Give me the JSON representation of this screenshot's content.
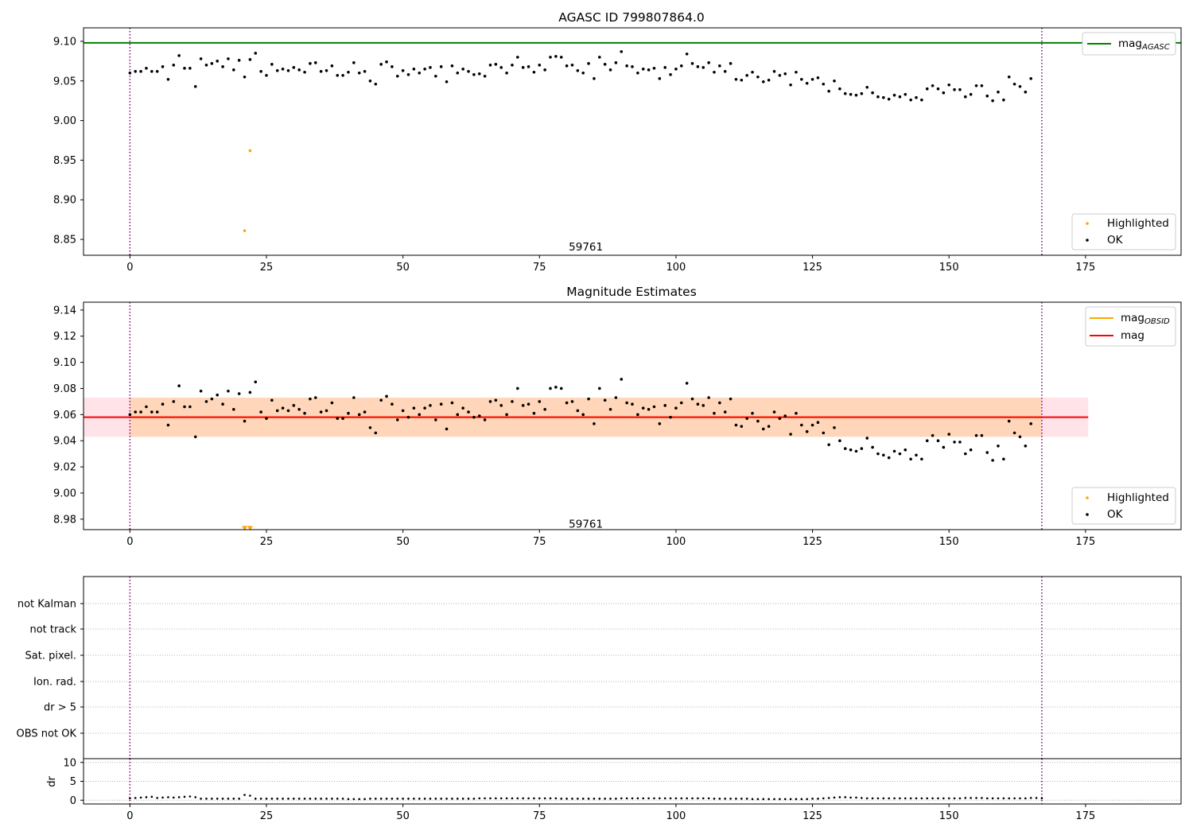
{
  "chart_data": [
    {
      "type": "scatter",
      "title": "AGASC ID 799807864.0",
      "xlim": [
        -8.5,
        192.5
      ],
      "ylim": [
        8.83,
        9.117
      ],
      "x_ticks": [
        0,
        25,
        50,
        75,
        100,
        125,
        150,
        175
      ],
      "y_ticks": [
        8.85,
        8.9,
        8.95,
        9.0,
        9.05,
        9.1
      ],
      "y_tick_labels": [
        "8.85",
        "8.90",
        "8.95",
        "9.00",
        "9.05",
        "9.10"
      ],
      "hline": {
        "y": 9.098,
        "color": "#008000"
      },
      "vlines": {
        "x": [
          0,
          167
        ],
        "color": "#800080"
      },
      "annotation": {
        "text": "59761",
        "x": 83.5,
        "y": 8.84
      },
      "legend_top": {
        "label": "mag",
        "sub": "AGASC",
        "color": "#008000"
      },
      "legend_bottom": [
        {
          "label": "Highlighted",
          "color": "#ffa500"
        },
        {
          "label": "OK",
          "color": "#000000"
        }
      ],
      "highlighted": [
        [
          21,
          8.861
        ],
        [
          22,
          8.962
        ]
      ],
      "colors": {
        "ok": "#000000",
        "highlighted": "#ffa500"
      }
    },
    {
      "type": "scatter",
      "title": "Magnitude Estimates",
      "xlim": [
        -8.5,
        192.5
      ],
      "ylim": [
        8.972,
        9.146
      ],
      "x_ticks": [
        0,
        25,
        50,
        75,
        100,
        125,
        150,
        175
      ],
      "y_ticks": [
        8.98,
        9.0,
        9.02,
        9.04,
        9.06,
        9.08,
        9.1,
        9.12,
        9.14
      ],
      "y_tick_labels": [
        "8.98",
        "9.00",
        "9.02",
        "9.04",
        "9.06",
        "9.08",
        "9.10",
        "9.12",
        "9.14"
      ],
      "mag_line": {
        "y": 9.058,
        "x_range": [
          -8.5,
          175.5
        ],
        "color": "#ff0000"
      },
      "obsid_line": {
        "y": 9.058,
        "x_range": [
          0,
          167
        ],
        "color": "#ffa500"
      },
      "band": {
        "y_range": [
          9.043,
          9.073
        ],
        "x_range": [
          -8.5,
          175.5
        ],
        "color": "#ffc0cb"
      },
      "obsid_band": {
        "y_range": [
          9.043,
          9.073
        ],
        "x_range": [
          0,
          167
        ],
        "color": "#ffa500"
      },
      "vlines": {
        "x": [
          0,
          167
        ],
        "color": "#800080"
      },
      "annotation": {
        "text": "59761",
        "x": 83.5,
        "y": 8.976
      },
      "legend_top": [
        {
          "label": "mag",
          "sub": "OBSID",
          "color": "#ffa500"
        },
        {
          "label": "mag",
          "sub": "",
          "color": "#ff0000"
        }
      ],
      "legend_bottom": [
        {
          "label": "Highlighted",
          "color": "#ffa500"
        },
        {
          "label": "OK",
          "color": "#000000"
        }
      ],
      "highlighted_markers": [
        [
          21,
          8.973
        ],
        [
          22,
          8.973
        ]
      ],
      "colors": {
        "ok": "#000000",
        "highlighted": "#ffa500"
      }
    },
    {
      "type": "scatter",
      "xlim": [
        -8.5,
        192.5
      ],
      "categories": [
        "not Kalman",
        "not track",
        "Sat. pixel.",
        "Ion. rad.",
        "dr > 5",
        "OBS not OK"
      ],
      "vlines": {
        "x": [
          0,
          167
        ],
        "color": "#800080"
      }
    },
    {
      "type": "scatter",
      "ylabel": "dr",
      "xlim": [
        -8.5,
        192.5
      ],
      "ylim": [
        -1,
        11
      ],
      "x_ticks": [
        0,
        25,
        50,
        75,
        100,
        125,
        150,
        175
      ],
      "x_tick_labels": [
        "0",
        "25",
        "50",
        "75",
        "100",
        "125",
        "150",
        "175"
      ],
      "y_ticks": [
        0,
        5,
        10
      ],
      "y_tick_labels": [
        "0",
        "5",
        "10"
      ],
      "vlines": {
        "x": [
          0,
          167
        ],
        "color": "#800080"
      },
      "colors": {
        "ok": "#000000",
        "highlighted": "#ffa500"
      }
    }
  ],
  "series": {
    "mag_ok": [
      9.06,
      9.062,
      9.062,
      9.066,
      9.062,
      9.062,
      9.068,
      9.052,
      9.07,
      9.082,
      9.066,
      9.066,
      9.043,
      9.078,
      9.07,
      9.072,
      9.075,
      9.068,
      9.078,
      9.064,
      9.076,
      9.055,
      9.077,
      9.085,
      9.062,
      9.057,
      9.071,
      9.063,
      9.065,
      9.063,
      9.067,
      9.064,
      9.061,
      9.072,
      9.073,
      9.062,
      9.063,
      9.069,
      9.057,
      9.057,
      9.061,
      9.073,
      9.06,
      9.062,
      9.05,
      9.046,
      9.071,
      9.074,
      9.068,
      9.056,
      9.063,
      9.058,
      9.065,
      9.06,
      9.065,
      9.067,
      9.056,
      9.068,
      9.049,
      9.069,
      9.06,
      9.065,
      9.062,
      9.058,
      9.059,
      9.056,
      9.07,
      9.071,
      9.067,
      9.06,
      9.07,
      9.08,
      9.067,
      9.068,
      9.061,
      9.07,
      9.064,
      9.08,
      9.081,
      9.08,
      9.069,
      9.07,
      9.063,
      9.06,
      9.072,
      9.053,
      9.08,
      9.071,
      9.064,
      9.073,
      9.087,
      9.069,
      9.068,
      9.06,
      9.065,
      9.064,
      9.066,
      9.053,
      9.067,
      9.058,
      9.065,
      9.069,
      9.084,
      9.072,
      9.068,
      9.067,
      9.073,
      9.061,
      9.069,
      9.062,
      9.072,
      9.052,
      9.051,
      9.057,
      9.061,
      9.055,
      9.049,
      9.051,
      9.062,
      9.057,
      9.059,
      9.045,
      9.061,
      9.052,
      9.047,
      9.052,
      9.054,
      9.046,
      9.037,
      9.05,
      9.04,
      9.034,
      9.033,
      9.032,
      9.034,
      9.042,
      9.035,
      9.03,
      9.029,
      9.027,
      9.032,
      9.03,
      9.033,
      9.026,
      9.029,
      9.026,
      9.04,
      9.044,
      9.04,
      9.035,
      9.045,
      9.039,
      9.039,
      9.03,
      9.033,
      9.044,
      9.044,
      9.031,
      9.025,
      9.036,
      9.026,
      9.055,
      9.046,
      9.043,
      9.036,
      9.053
    ],
    "dr_ok": [
      0.5,
      0.6,
      0.7,
      0.8,
      0.9,
      0.6,
      0.7,
      0.8,
      0.7,
      0.8,
      0.9,
      1.0,
      0.8,
      0.4,
      0.4,
      0.4,
      0.4,
      0.4,
      0.4,
      0.4,
      0.4,
      1.4,
      1.2,
      0.4,
      0.4,
      0.4,
      0.4,
      0.4,
      0.4,
      0.4,
      0.4,
      0.4,
      0.4,
      0.4,
      0.4,
      0.4,
      0.4,
      0.4,
      0.4,
      0.4,
      0.3,
      0.3,
      0.3,
      0.3,
      0.4,
      0.4,
      0.4,
      0.4,
      0.4,
      0.4,
      0.4,
      0.4,
      0.4,
      0.4,
      0.4,
      0.4,
      0.4,
      0.4,
      0.4,
      0.4,
      0.4,
      0.4,
      0.4,
      0.4,
      0.5,
      0.5,
      0.5,
      0.5,
      0.5,
      0.5,
      0.5,
      0.5,
      0.5,
      0.5,
      0.5,
      0.5,
      0.5,
      0.5,
      0.5,
      0.4,
      0.4,
      0.4,
      0.4,
      0.4,
      0.4,
      0.4,
      0.4,
      0.4,
      0.4,
      0.4,
      0.5,
      0.5,
      0.5,
      0.5,
      0.5,
      0.5,
      0.5,
      0.5,
      0.5,
      0.5,
      0.5,
      0.5,
      0.5,
      0.5,
      0.5,
      0.5,
      0.5,
      0.4,
      0.4,
      0.4,
      0.4,
      0.4,
      0.4,
      0.4,
      0.3,
      0.3,
      0.3,
      0.3,
      0.3,
      0.3,
      0.3,
      0.3,
      0.3,
      0.3,
      0.3,
      0.4,
      0.4,
      0.5,
      0.6,
      0.7,
      0.8,
      0.8,
      0.7,
      0.7,
      0.6,
      0.5,
      0.5,
      0.5,
      0.5,
      0.5,
      0.5,
      0.5,
      0.5,
      0.5,
      0.5,
      0.5,
      0.5,
      0.5,
      0.5,
      0.5,
      0.5,
      0.5,
      0.5,
      0.6,
      0.6,
      0.6,
      0.6,
      0.5,
      0.5,
      0.5,
      0.5,
      0.5,
      0.5,
      0.5,
      0.5,
      0.6,
      0.6,
      0.5
    ]
  }
}
